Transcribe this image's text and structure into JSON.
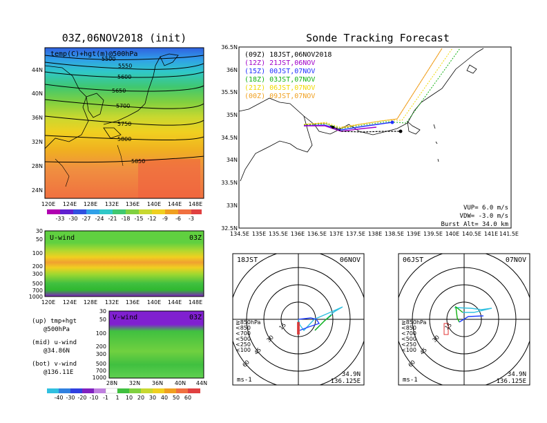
{
  "left": {
    "title": "03Z,06NOV2018 (init)",
    "map_label": "temp(C)+hgt(m)@500hPa",
    "contours": [
      "5500",
      "5550",
      "5600",
      "5650",
      "5700",
      "5750",
      "5800",
      "5850"
    ],
    "lat_ticks": [
      "44N",
      "40N",
      "36N",
      "32N",
      "28N",
      "24N"
    ],
    "lon_ticks": [
      "120E",
      "124E",
      "128E",
      "132E",
      "136E",
      "140E",
      "144E",
      "148E"
    ],
    "temp_colorbar": [
      "-33",
      "-30",
      "-27",
      "-24",
      "-21",
      "-18",
      "-15",
      "-12",
      "-9",
      "-6",
      "-3"
    ],
    "uwind_label": "U-wind",
    "uwind_time": "03Z",
    "vwind_label": "V-wind",
    "vwind_time": "03Z",
    "p_ticks_u": [
      "30",
      "50",
      "100",
      "200",
      "300",
      "500",
      "700",
      "1000"
    ],
    "p_ticks_v": [
      "30",
      "50",
      "100",
      "200",
      "300",
      "500",
      "700",
      "1000"
    ],
    "lat_ticks_v": [
      "28N",
      "32N",
      "36N",
      "40N",
      "44N"
    ],
    "wind_colorbar": [
      "-40",
      "-30",
      "-20",
      "-10",
      "-1",
      "1",
      "10",
      "20",
      "30",
      "40",
      "50",
      "60"
    ],
    "notes": [
      "(up) tmp+hgt",
      "@500hPa",
      "(mid) u-wind",
      "@34.86N",
      "(bot) v-wind",
      "@136.11E"
    ]
  },
  "track": {
    "title": "Sonde Tracking Forecast",
    "legend": [
      {
        "text": "(09Z)  18JST,06NOV2018",
        "color": "#000000"
      },
      {
        "text": "(12Z)  21JST,06NOV",
        "color": "#a000c8"
      },
      {
        "text": "(15Z)  00JST,07NOV",
        "color": "#2030ff"
      },
      {
        "text": "(18Z)  03JST,07NOV",
        "color": "#10b010"
      },
      {
        "text": "(21Z)  06JST,07NOV",
        "color": "#f0d800"
      },
      {
        "text": "(00Z)  09JST,07NOV",
        "color": "#f0a020"
      }
    ],
    "lat_ticks": [
      "36.5N",
      "36N",
      "35.5N",
      "35N",
      "34.5N",
      "34N",
      "33.5N",
      "33N",
      "32.5N"
    ],
    "lon_ticks": [
      "134.5E",
      "135E",
      "135.5E",
      "136E",
      "136.5E",
      "137E",
      "137.5E",
      "138E",
      "138.5E",
      "139E",
      "139.5E",
      "140E",
      "140.5E",
      "141E",
      "141.5E"
    ],
    "info": [
      "VUP=  6.0 m/s",
      "VDW= -3.0 m/s",
      "Burst Alt= 34.0 km"
    ]
  },
  "hodo1": {
    "time_label": "18JST",
    "date_label": "06NOV",
    "rings": [
      "15",
      "30",
      "45",
      "60"
    ],
    "levels": [
      "≧850hPa",
      "<850",
      "<700",
      "<500",
      "<250",
      "<100"
    ],
    "level_colors": [
      "#e03030",
      "#f08000",
      "#e0c000",
      "#10b010",
      "#30c0e0",
      "#2040ff"
    ],
    "unit": "ms-1",
    "pos_lat": "34.9N",
    "pos_lon": "136.125E"
  },
  "hodo2": {
    "time_label": "06JST",
    "date_label": "07NOV",
    "rings": [
      "15",
      "30",
      "45",
      "60"
    ],
    "levels": [
      "≧850hPa",
      "<850",
      "<700",
      "<500",
      "<250",
      "<100"
    ],
    "level_colors": [
      "#e03030",
      "#f08000",
      "#e0c000",
      "#10b010",
      "#30c0e0",
      "#2040ff"
    ],
    "unit": "ms-1",
    "pos_lat": "34.9N",
    "pos_lon": "136.125E"
  }
}
